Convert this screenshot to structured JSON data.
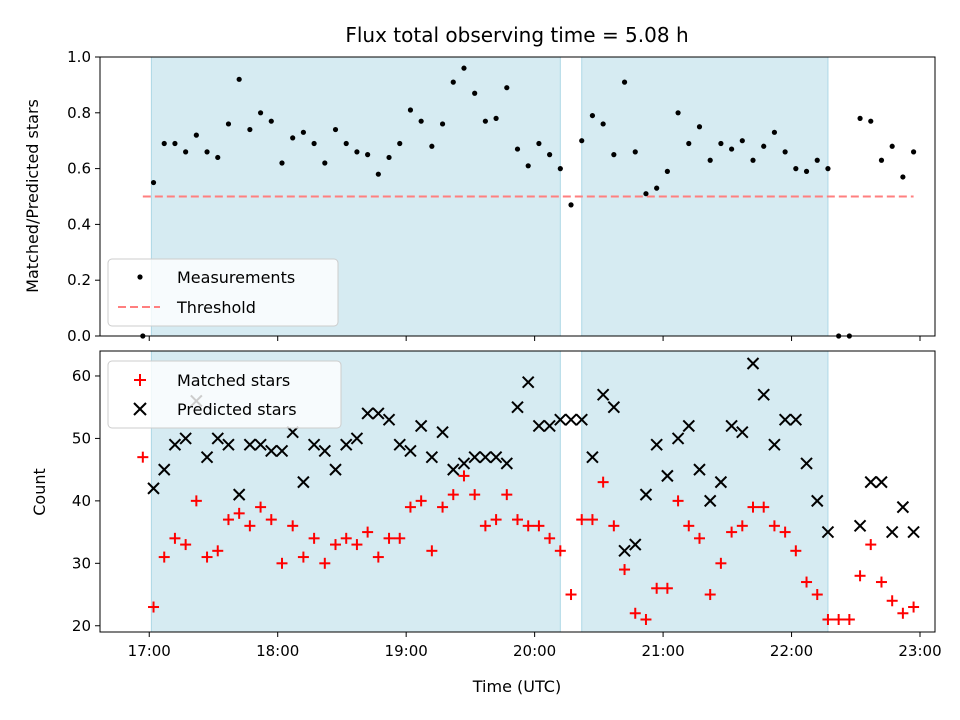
{
  "chart_data": [
    {
      "type": "scatter",
      "title": "Flux total observing time = 5.08 h",
      "ylabel": "Matched/Predicted stars",
      "xlabel": "",
      "xlim": [
        "16:37",
        "23:07"
      ],
      "ylim": [
        0,
        1.0
      ],
      "y_ticks": [
        "0.0",
        "0.2",
        "0.4",
        "0.6",
        "0.8",
        "1.0"
      ],
      "shaded_intervals": [
        [
          "17:01",
          "20:12"
        ],
        [
          "20:22",
          "22:17"
        ]
      ],
      "shade_color": "#add8e6",
      "legend": {
        "position": "lower-left",
        "items": [
          {
            "label": "Measurements",
            "marker": "dot",
            "color": "#000000"
          },
          {
            "label": "Threshold",
            "marker": "dashed-line",
            "color": "#ff7f7f"
          }
        ]
      },
      "series": [
        {
          "name": "Measurements",
          "color": "#000000",
          "points": [
            [
              "16:57",
              0.0
            ],
            [
              "17:02",
              0.55
            ],
            [
              "17:07",
              0.69
            ],
            [
              "17:12",
              0.69
            ],
            [
              "17:17",
              0.66
            ],
            [
              "17:22",
              0.72
            ],
            [
              "17:27",
              0.66
            ],
            [
              "17:32",
              0.64
            ],
            [
              "17:37",
              0.76
            ],
            [
              "17:42",
              0.92
            ],
            [
              "17:47",
              0.74
            ],
            [
              "17:52",
              0.8
            ],
            [
              "17:57",
              0.77
            ],
            [
              "18:02",
              0.62
            ],
            [
              "18:07",
              0.71
            ],
            [
              "18:12",
              0.73
            ],
            [
              "18:17",
              0.69
            ],
            [
              "18:22",
              0.62
            ],
            [
              "18:27",
              0.74
            ],
            [
              "18:32",
              0.69
            ],
            [
              "18:37",
              0.66
            ],
            [
              "18:42",
              0.65
            ],
            [
              "18:47",
              0.58
            ],
            [
              "18:52",
              0.64
            ],
            [
              "18:57",
              0.69
            ],
            [
              "19:02",
              0.81
            ],
            [
              "19:07",
              0.77
            ],
            [
              "19:12",
              0.68
            ],
            [
              "19:17",
              0.76
            ],
            [
              "19:22",
              0.91
            ],
            [
              "19:27",
              0.96
            ],
            [
              "19:32",
              0.87
            ],
            [
              "19:37",
              0.77
            ],
            [
              "19:42",
              0.78
            ],
            [
              "19:47",
              0.89
            ],
            [
              "19:52",
              0.67
            ],
            [
              "19:57",
              0.61
            ],
            [
              "20:02",
              0.69
            ],
            [
              "20:07",
              0.65
            ],
            [
              "20:12",
              0.6
            ],
            [
              "20:17",
              0.47
            ],
            [
              "20:22",
              0.7
            ],
            [
              "20:27",
              0.79
            ],
            [
              "20:32",
              0.76
            ],
            [
              "20:37",
              0.65
            ],
            [
              "20:42",
              0.91
            ],
            [
              "20:47",
              0.66
            ],
            [
              "20:52",
              0.51
            ],
            [
              "20:57",
              0.53
            ],
            [
              "21:02",
              0.59
            ],
            [
              "21:07",
              0.8
            ],
            [
              "21:12",
              0.69
            ],
            [
              "21:17",
              0.75
            ],
            [
              "21:22",
              0.63
            ],
            [
              "21:27",
              0.69
            ],
            [
              "21:32",
              0.67
            ],
            [
              "21:37",
              0.7
            ],
            [
              "21:42",
              0.63
            ],
            [
              "21:47",
              0.68
            ],
            [
              "21:52",
              0.73
            ],
            [
              "21:57",
              0.66
            ],
            [
              "22:02",
              0.6
            ],
            [
              "22:07",
              0.59
            ],
            [
              "22:12",
              0.63
            ],
            [
              "22:17",
              0.6
            ],
            [
              "22:22",
              0.0
            ],
            [
              "22:27",
              0.0
            ],
            [
              "22:32",
              0.78
            ],
            [
              "22:37",
              0.77
            ],
            [
              "22:42",
              0.63
            ],
            [
              "22:47",
              0.68
            ],
            [
              "22:52",
              0.57
            ],
            [
              "22:57",
              0.66
            ]
          ]
        },
        {
          "name": "Threshold",
          "color": "#ff7f7f",
          "points": [
            [
              "16:57",
              0.5
            ],
            [
              "22:57",
              0.5
            ]
          ]
        }
      ]
    },
    {
      "type": "scatter",
      "title": "",
      "ylabel": "Count",
      "xlabel": "Time (UTC)",
      "xlim": [
        "16:37",
        "23:07"
      ],
      "ylim": [
        19,
        64
      ],
      "y_ticks": [
        "20",
        "30",
        "40",
        "50",
        "60"
      ],
      "x_ticks": [
        "17:00",
        "18:00",
        "19:00",
        "20:00",
        "21:00",
        "22:00",
        "23:00"
      ],
      "shaded_intervals": [
        [
          "17:01",
          "20:12"
        ],
        [
          "20:22",
          "22:17"
        ]
      ],
      "shade_color": "#add8e6",
      "legend": {
        "position": "top-left",
        "items": [
          {
            "label": "Matched stars",
            "marker": "plus",
            "color": "#ff0000"
          },
          {
            "label": "Predicted stars",
            "marker": "x",
            "color": "#000000"
          }
        ]
      },
      "series": [
        {
          "name": "Matched stars",
          "color": "#ff0000",
          "points": [
            [
              "16:57",
              47
            ],
            [
              "17:02",
              23
            ],
            [
              "17:07",
              31
            ],
            [
              "17:12",
              34
            ],
            [
              "17:17",
              33
            ],
            [
              "17:22",
              40
            ],
            [
              "17:27",
              31
            ],
            [
              "17:32",
              32
            ],
            [
              "17:37",
              37
            ],
            [
              "17:42",
              38
            ],
            [
              "17:47",
              36
            ],
            [
              "17:52",
              39
            ],
            [
              "17:57",
              37
            ],
            [
              "18:02",
              30
            ],
            [
              "18:07",
              36
            ],
            [
              "18:12",
              31
            ],
            [
              "18:17",
              34
            ],
            [
              "18:22",
              30
            ],
            [
              "18:27",
              33
            ],
            [
              "18:32",
              34
            ],
            [
              "18:37",
              33
            ],
            [
              "18:42",
              35
            ],
            [
              "18:47",
              31
            ],
            [
              "18:52",
              34
            ],
            [
              "18:57",
              34
            ],
            [
              "19:02",
              39
            ],
            [
              "19:07",
              40
            ],
            [
              "19:12",
              32
            ],
            [
              "19:17",
              39
            ],
            [
              "19:22",
              41
            ],
            [
              "19:27",
              44
            ],
            [
              "19:32",
              41
            ],
            [
              "19:37",
              36
            ],
            [
              "19:42",
              37
            ],
            [
              "19:47",
              41
            ],
            [
              "19:52",
              37
            ],
            [
              "19:57",
              36
            ],
            [
              "20:02",
              36
            ],
            [
              "20:07",
              34
            ],
            [
              "20:12",
              32
            ],
            [
              "20:17",
              25
            ],
            [
              "20:22",
              37
            ],
            [
              "20:27",
              37
            ],
            [
              "20:32",
              43
            ],
            [
              "20:37",
              36
            ],
            [
              "20:42",
              29
            ],
            [
              "20:47",
              22
            ],
            [
              "20:52",
              21
            ],
            [
              "20:57",
              26
            ],
            [
              "21:02",
              26
            ],
            [
              "21:07",
              40
            ],
            [
              "21:12",
              36
            ],
            [
              "21:17",
              34
            ],
            [
              "21:22",
              25
            ],
            [
              "21:27",
              30
            ],
            [
              "21:32",
              35
            ],
            [
              "21:37",
              36
            ],
            [
              "21:42",
              39
            ],
            [
              "21:47",
              39
            ],
            [
              "21:52",
              36
            ],
            [
              "21:57",
              35
            ],
            [
              "22:02",
              32
            ],
            [
              "22:07",
              27
            ],
            [
              "22:12",
              25
            ],
            [
              "22:17",
              21
            ],
            [
              "22:22",
              21
            ],
            [
              "22:27",
              21
            ],
            [
              "22:32",
              28
            ],
            [
              "22:37",
              33
            ],
            [
              "22:42",
              27
            ],
            [
              "22:47",
              24
            ],
            [
              "22:52",
              22
            ],
            [
              "22:57",
              23
            ]
          ]
        },
        {
          "name": "Predicted stars",
          "color": "#000000",
          "points": [
            [
              "17:02",
              42
            ],
            [
              "17:07",
              45
            ],
            [
              "17:12",
              49
            ],
            [
              "17:17",
              50
            ],
            [
              "17:22",
              56
            ],
            [
              "17:27",
              47
            ],
            [
              "17:32",
              50
            ],
            [
              "17:37",
              49
            ],
            [
              "17:42",
              41
            ],
            [
              "17:47",
              49
            ],
            [
              "17:52",
              49
            ],
            [
              "17:57",
              48
            ],
            [
              "18:02",
              48
            ],
            [
              "18:07",
              51
            ],
            [
              "18:12",
              43
            ],
            [
              "18:17",
              49
            ],
            [
              "18:22",
              48
            ],
            [
              "18:27",
              45
            ],
            [
              "18:32",
              49
            ],
            [
              "18:37",
              50
            ],
            [
              "18:42",
              54
            ],
            [
              "18:47",
              54
            ],
            [
              "18:52",
              53
            ],
            [
              "18:57",
              49
            ],
            [
              "19:02",
              48
            ],
            [
              "19:07",
              52
            ],
            [
              "19:12",
              47
            ],
            [
              "19:17",
              51
            ],
            [
              "19:22",
              45
            ],
            [
              "19:27",
              46
            ],
            [
              "19:32",
              47
            ],
            [
              "19:37",
              47
            ],
            [
              "19:42",
              47
            ],
            [
              "19:47",
              46
            ],
            [
              "19:52",
              55
            ],
            [
              "19:57",
              59
            ],
            [
              "20:02",
              52
            ],
            [
              "20:07",
              52
            ],
            [
              "20:12",
              53
            ],
            [
              "20:17",
              53
            ],
            [
              "20:22",
              53
            ],
            [
              "20:27",
              47
            ],
            [
              "20:32",
              57
            ],
            [
              "20:37",
              55
            ],
            [
              "20:42",
              32
            ],
            [
              "20:47",
              33
            ],
            [
              "20:52",
              41
            ],
            [
              "20:57",
              49
            ],
            [
              "21:02",
              44
            ],
            [
              "21:07",
              50
            ],
            [
              "21:12",
              52
            ],
            [
              "21:17",
              45
            ],
            [
              "21:22",
              40
            ],
            [
              "21:27",
              43
            ],
            [
              "21:32",
              52
            ],
            [
              "21:37",
              51
            ],
            [
              "21:42",
              62
            ],
            [
              "21:47",
              57
            ],
            [
              "21:52",
              49
            ],
            [
              "21:57",
              53
            ],
            [
              "22:02",
              53
            ],
            [
              "22:07",
              46
            ],
            [
              "22:12",
              40
            ],
            [
              "22:17",
              35
            ],
            [
              "22:32",
              36
            ],
            [
              "22:37",
              43
            ],
            [
              "22:42",
              43
            ],
            [
              "22:47",
              35
            ],
            [
              "22:52",
              39
            ],
            [
              "22:57",
              35
            ]
          ]
        }
      ]
    }
  ]
}
